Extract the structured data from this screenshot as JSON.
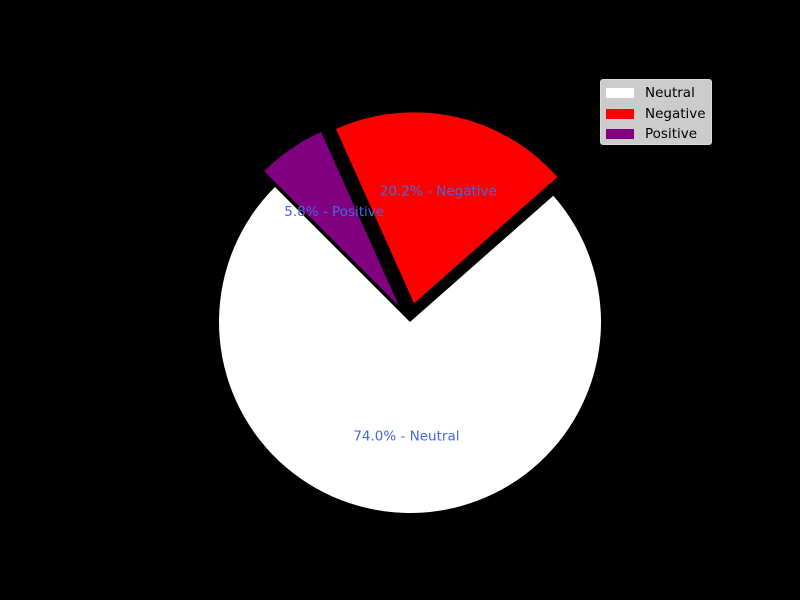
{
  "chart_data": {
    "type": "pie",
    "title": "",
    "slices": [
      {
        "label": "Neutral",
        "value": 74.0,
        "color": "#ffffff",
        "exploded": false,
        "data_label": "74.0% - Neutral"
      },
      {
        "label": "Negative",
        "value": 20.2,
        "color": "#ff0000",
        "exploded": true,
        "data_label": "20.2% - Negative"
      },
      {
        "label": "Positive",
        "value": 5.8,
        "color": "#800080",
        "exploded": true,
        "data_label": "5.8% - Positive"
      }
    ],
    "start_angle": 135,
    "counterclock": true,
    "label_color": "#4169e1",
    "background": "#000000",
    "legend": {
      "placement": "upper-right",
      "entries": [
        {
          "label": "Neutral",
          "color": "#ffffff"
        },
        {
          "label": "Negative",
          "color": "#ff0000"
        },
        {
          "label": "Positive",
          "color": "#800080"
        }
      ]
    }
  }
}
